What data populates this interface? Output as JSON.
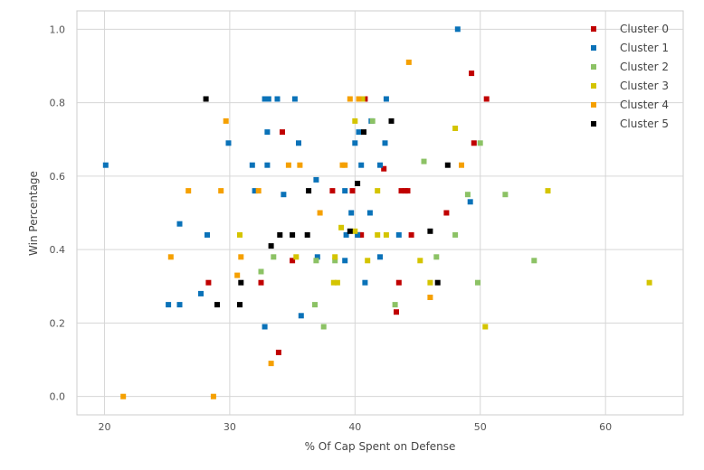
{
  "chart_data": {
    "type": "scatter",
    "xlabel": "% Of Cap Spent on Defense",
    "ylabel": "Win Percentage",
    "xlim": [
      17.8,
      66.2
    ],
    "ylim": [
      -0.05,
      1.05
    ],
    "x_ticks": [
      20,
      30,
      40,
      50,
      60
    ],
    "y_ticks": [
      0.0,
      0.2,
      0.4,
      0.6,
      0.8,
      1.0
    ],
    "x_tick_labels": [
      "20",
      "30",
      "40",
      "50",
      "60"
    ],
    "y_tick_labels": [
      "0.0",
      "0.2",
      "0.4",
      "0.6",
      "0.8",
      "1.0"
    ],
    "grid": true,
    "legend_position": "top-right",
    "series": [
      {
        "name": "Cluster 0",
        "color": "#c00000",
        "points": [
          [
            34.2,
            0.72
          ],
          [
            40.8,
            0.81
          ],
          [
            42.3,
            0.62
          ],
          [
            44.0,
            0.56
          ],
          [
            43.7,
            0.56
          ],
          [
            44.2,
            0.56
          ],
          [
            49.3,
            0.88
          ],
          [
            50.5,
            0.81
          ],
          [
            49.5,
            0.69
          ],
          [
            47.3,
            0.5
          ],
          [
            44.5,
            0.44
          ],
          [
            40.3,
            0.44
          ],
          [
            40.5,
            0.44
          ],
          [
            38.2,
            0.56
          ],
          [
            39.8,
            0.56
          ],
          [
            35.0,
            0.37
          ],
          [
            32.5,
            0.31
          ],
          [
            28.3,
            0.31
          ],
          [
            33.9,
            0.12
          ],
          [
            43.5,
            0.31
          ],
          [
            43.3,
            0.23
          ]
        ]
      },
      {
        "name": "Cluster 1",
        "color": "#0a72b8",
        "points": [
          [
            48.2,
            1.0
          ],
          [
            20.1,
            0.63
          ],
          [
            32.8,
            0.81
          ],
          [
            33.1,
            0.81
          ],
          [
            33.8,
            0.81
          ],
          [
            35.2,
            0.81
          ],
          [
            42.5,
            0.81
          ],
          [
            33.0,
            0.72
          ],
          [
            40.3,
            0.72
          ],
          [
            41.3,
            0.75
          ],
          [
            35.5,
            0.69
          ],
          [
            42.4,
            0.69
          ],
          [
            40.0,
            0.69
          ],
          [
            29.9,
            0.69
          ],
          [
            31.8,
            0.63
          ],
          [
            33.0,
            0.63
          ],
          [
            40.5,
            0.63
          ],
          [
            42.0,
            0.63
          ],
          [
            36.9,
            0.59
          ],
          [
            32.0,
            0.56
          ],
          [
            34.3,
            0.55
          ],
          [
            39.2,
            0.56
          ],
          [
            49.2,
            0.53
          ],
          [
            41.2,
            0.5
          ],
          [
            39.7,
            0.5
          ],
          [
            26.0,
            0.47
          ],
          [
            28.2,
            0.44
          ],
          [
            39.3,
            0.44
          ],
          [
            40.2,
            0.44
          ],
          [
            43.5,
            0.44
          ],
          [
            42.0,
            0.38
          ],
          [
            37.0,
            0.38
          ],
          [
            39.2,
            0.37
          ],
          [
            40.8,
            0.31
          ],
          [
            27.7,
            0.28
          ],
          [
            25.1,
            0.25
          ],
          [
            26.0,
            0.25
          ],
          [
            32.8,
            0.19
          ],
          [
            35.7,
            0.22
          ]
        ]
      },
      {
        "name": "Cluster 2",
        "color": "#8cc265",
        "points": [
          [
            41.4,
            0.75
          ],
          [
            50.0,
            0.69
          ],
          [
            45.5,
            0.64
          ],
          [
            52.0,
            0.55
          ],
          [
            49.0,
            0.55
          ],
          [
            48.0,
            0.44
          ],
          [
            46.5,
            0.38
          ],
          [
            54.3,
            0.37
          ],
          [
            33.5,
            0.38
          ],
          [
            32.5,
            0.34
          ],
          [
            36.9,
            0.37
          ],
          [
            38.4,
            0.37
          ],
          [
            49.8,
            0.31
          ],
          [
            43.2,
            0.25
          ],
          [
            36.8,
            0.25
          ],
          [
            37.5,
            0.19
          ]
        ]
      },
      {
        "name": "Cluster 3",
        "color": "#d4c400",
        "points": [
          [
            48.0,
            0.73
          ],
          [
            55.4,
            0.56
          ],
          [
            41.8,
            0.56
          ],
          [
            38.9,
            0.46
          ],
          [
            42.5,
            0.44
          ],
          [
            41.8,
            0.44
          ],
          [
            40.0,
            0.45
          ],
          [
            30.8,
            0.44
          ],
          [
            41.0,
            0.37
          ],
          [
            35.3,
            0.38
          ],
          [
            38.4,
            0.38
          ],
          [
            38.3,
            0.31
          ],
          [
            38.6,
            0.31
          ],
          [
            45.2,
            0.37
          ],
          [
            46.0,
            0.31
          ],
          [
            63.5,
            0.31
          ],
          [
            50.4,
            0.19
          ],
          [
            40.6,
            0.81
          ],
          [
            40.0,
            0.75
          ]
        ]
      },
      {
        "name": "Cluster 4",
        "color": "#f5a000",
        "points": [
          [
            44.3,
            0.91
          ],
          [
            39.6,
            0.81
          ],
          [
            40.3,
            0.81
          ],
          [
            29.7,
            0.75
          ],
          [
            35.6,
            0.63
          ],
          [
            34.7,
            0.63
          ],
          [
            39.0,
            0.63
          ],
          [
            39.2,
            0.63
          ],
          [
            48.5,
            0.63
          ],
          [
            26.7,
            0.56
          ],
          [
            29.3,
            0.56
          ],
          [
            32.3,
            0.56
          ],
          [
            37.2,
            0.5
          ],
          [
            30.9,
            0.38
          ],
          [
            25.3,
            0.38
          ],
          [
            30.6,
            0.33
          ],
          [
            46.0,
            0.27
          ],
          [
            33.3,
            0.09
          ],
          [
            21.5,
            0.0
          ],
          [
            28.7,
            0.0
          ]
        ]
      },
      {
        "name": "Cluster 5",
        "color": "#000000",
        "points": [
          [
            28.1,
            0.81
          ],
          [
            42.9,
            0.75
          ],
          [
            40.7,
            0.72
          ],
          [
            47.4,
            0.63
          ],
          [
            40.2,
            0.58
          ],
          [
            36.3,
            0.56
          ],
          [
            39.6,
            0.45
          ],
          [
            46.0,
            0.45
          ],
          [
            34.0,
            0.44
          ],
          [
            35.0,
            0.44
          ],
          [
            36.2,
            0.44
          ],
          [
            33.3,
            0.41
          ],
          [
            30.9,
            0.31
          ],
          [
            46.6,
            0.31
          ],
          [
            29.0,
            0.25
          ],
          [
            30.8,
            0.25
          ]
        ]
      }
    ]
  }
}
